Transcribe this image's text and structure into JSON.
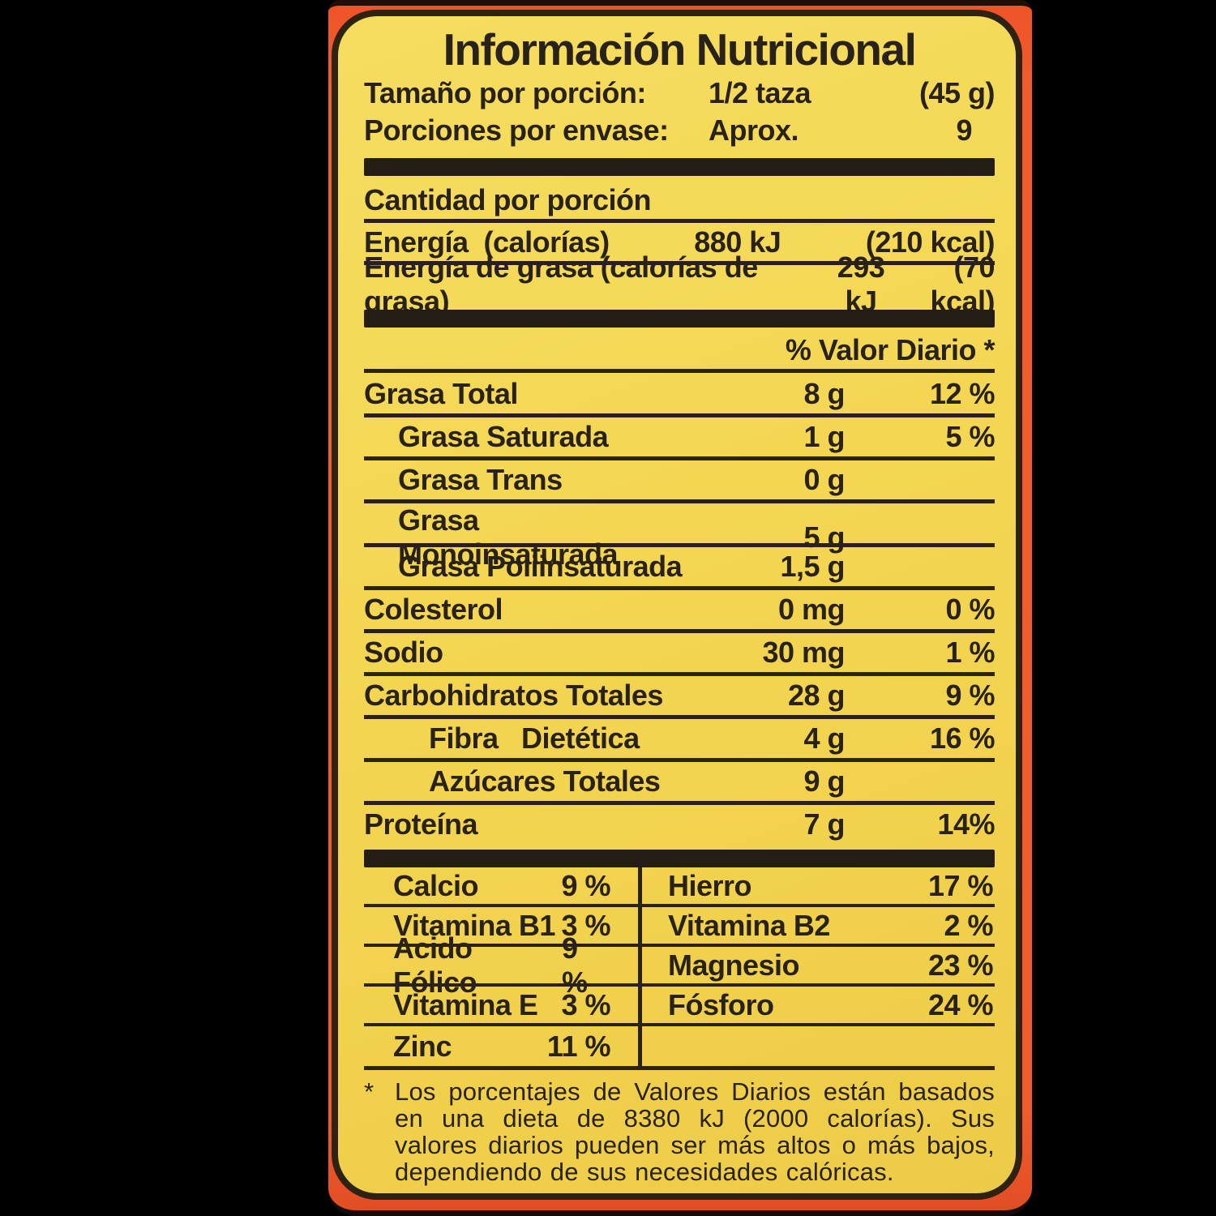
{
  "colors": {
    "package_orange": "#f15a2d",
    "label_yellow": "#f3d550",
    "ink": "#29221a",
    "background": "#000000"
  },
  "label": {
    "title": "Información Nutricional",
    "serving": {
      "size_label": "Tamaño por porción:",
      "size_value": "1/2 taza",
      "size_weight": "(45 g)",
      "per_container_label": "Porciones por envase:",
      "per_container_value": "Aprox.",
      "per_container_count": "9"
    },
    "amount_per_serving": "Cantidad por porción",
    "energy_rows": [
      {
        "name": "Energía  (calorías)",
        "kj": "880 kJ",
        "kcal": "(210 kcal)"
      },
      {
        "name": "Energía de grasa (calorías de grasa)",
        "kj": "293 kJ",
        "kcal": "(70 kcal)"
      }
    ],
    "daily_value_header": "% Valor Diario *",
    "nutrients": [
      {
        "name": "Grasa Total",
        "amount": "8 g",
        "dv": "12 %"
      },
      {
        "name": "Grasa Saturada",
        "amount": "1 g",
        "dv": "5 %"
      },
      {
        "name": "Grasa Trans",
        "amount": "0 g",
        "dv": ""
      },
      {
        "name": "Grasa Monoinsaturada",
        "amount": "5 g",
        "dv": ""
      },
      {
        "name": "Grasa Poliinsaturada",
        "amount": "1,5 g",
        "dv": ""
      },
      {
        "name": "Colesterol",
        "amount": "0 mg",
        "dv": "0 %"
      },
      {
        "name": "Sodio",
        "amount": "30 mg",
        "dv": "1 %"
      },
      {
        "name": "Carbohidratos Totales",
        "amount": "28 g",
        "dv": "9 %"
      },
      {
        "name": "Fibra   Dietética",
        "amount": "4 g",
        "dv": "16 %"
      },
      {
        "name": "Azúcares Totales",
        "amount": "9 g",
        "dv": ""
      },
      {
        "name": "Proteína",
        "amount": "7 g",
        "dv": "14%"
      }
    ],
    "micronutrients": {
      "left": [
        {
          "name": "Calcio",
          "dv": "9 %"
        },
        {
          "name": "Vitamina B1",
          "dv": "3 %"
        },
        {
          "name": "Acido Fólico",
          "dv": "9 %"
        },
        {
          "name": "Vitamina E",
          "dv": "3 %"
        },
        {
          "name": "Zinc",
          "dv": "11 %"
        }
      ],
      "right": [
        {
          "name": "Hierro",
          "dv": "17 %"
        },
        {
          "name": "Vitamina B2",
          "dv": "2 %"
        },
        {
          "name": "Magnesio",
          "dv": "23 %"
        },
        {
          "name": "Fósforo",
          "dv": "24 %"
        },
        {
          "name": "",
          "dv": ""
        }
      ]
    },
    "footnote_marker": "*",
    "footnote": "Los porcentajes de Valores Diarios están basados en una dieta de 8380 kJ (2000 calorías). Sus valores diarios pueden ser más altos o más bajos, dependiendo de sus necesidades calóricas."
  }
}
